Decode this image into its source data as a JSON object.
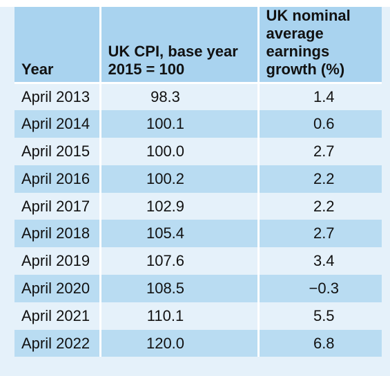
{
  "table": {
    "headers": {
      "year": "Year",
      "cpi_line1": "UK CPI, base year",
      "cpi_line2": "2015 = 100",
      "earn_line1": "UK nominal",
      "earn_line2": "average earnings",
      "earn_line3": "growth (%)"
    },
    "rows": [
      {
        "year": "April 2013",
        "cpi": "98.3",
        "earnings": "1.4"
      },
      {
        "year": "April 2014",
        "cpi": "100.1",
        "earnings": "0.6"
      },
      {
        "year": "April 2015",
        "cpi": "100.0",
        "earnings": "2.7"
      },
      {
        "year": "April 2016",
        "cpi": "100.2",
        "earnings": "2.2"
      },
      {
        "year": "April 2017",
        "cpi": "102.9",
        "earnings": "2.2"
      },
      {
        "year": "April 2018",
        "cpi": "105.4",
        "earnings": "2.7"
      },
      {
        "year": "April 2019",
        "cpi": "107.6",
        "earnings": "3.4"
      },
      {
        "year": "April 2020",
        "cpi": "108.5",
        "earnings": "−0.3"
      },
      {
        "year": "April 2021",
        "cpi": "110.1",
        "earnings": "5.5"
      },
      {
        "year": "April 2022",
        "cpi": "120.0",
        "earnings": "6.8"
      }
    ]
  },
  "colors": {
    "header_bg": "#a9d3ef",
    "row_light": "#e5f1fa",
    "row_dark": "#b9dcf2",
    "divider": "#ffffff"
  }
}
